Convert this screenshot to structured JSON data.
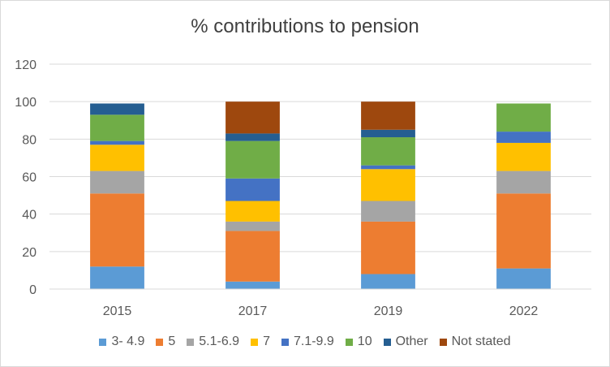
{
  "chart_data": {
    "type": "bar",
    "stacked": true,
    "title": "% contributions to pension",
    "xlabel": "",
    "ylabel": "",
    "ylim": [
      0,
      120
    ],
    "yticks": [
      0,
      20,
      40,
      60,
      80,
      100,
      120
    ],
    "grid": true,
    "legend_position": "bottom",
    "categories": [
      "2015",
      "2017",
      "2019",
      "2022"
    ],
    "series": [
      {
        "name": "3- 4.9",
        "color": "#5b9bd5",
        "values": [
          12,
          4,
          8,
          11
        ]
      },
      {
        "name": "5",
        "color": "#ed7d31",
        "values": [
          39,
          27,
          28,
          40
        ]
      },
      {
        "name": "5.1-6.9",
        "color": "#a5a5a5",
        "values": [
          12,
          5,
          11,
          12
        ]
      },
      {
        "name": "7",
        "color": "#ffc000",
        "values": [
          14,
          11,
          17,
          15
        ]
      },
      {
        "name": "7.1-9.9",
        "color": "#4472c4",
        "values": [
          2,
          12,
          2,
          6
        ]
      },
      {
        "name": "10",
        "color": "#70ad47",
        "values": [
          14,
          20,
          15,
          15
        ]
      },
      {
        "name": "Other",
        "color": "#255e91",
        "values": [
          6,
          4,
          4,
          0
        ]
      },
      {
        "name": "Not stated",
        "color": "#9e480e",
        "values": [
          0,
          17,
          15,
          0
        ]
      }
    ]
  }
}
